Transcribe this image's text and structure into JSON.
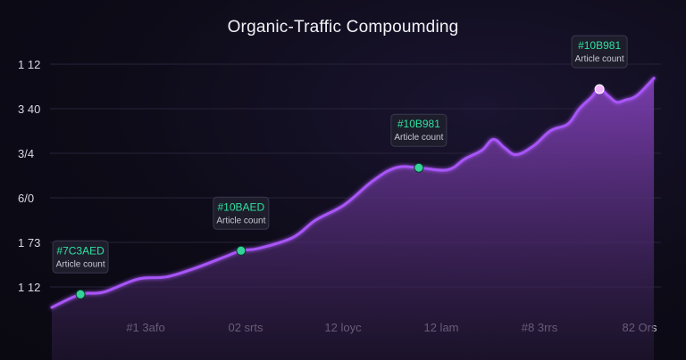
{
  "chart_data": {
    "type": "area",
    "title": "Organic-Traffic Compoumding",
    "ytick_labels": [
      "1 12",
      "3 40",
      "3/4",
      "6/0",
      "1 73",
      "1 12"
    ],
    "xtick_labels": [
      "#1 3afo",
      "02 srts",
      "12 loyc",
      "12 lam",
      "#8 3rrs",
      "82 Ors"
    ],
    "grid": true,
    "series": [
      {
        "color": "#a855f7",
        "points": [
          [
            0.0,
            0.0
          ],
          [
            0.05,
            0.06
          ],
          [
            0.09,
            0.07
          ],
          [
            0.15,
            0.13
          ],
          [
            0.2,
            0.14
          ],
          [
            0.25,
            0.18
          ],
          [
            0.3,
            0.23
          ],
          [
            0.33,
            0.26
          ],
          [
            0.36,
            0.27
          ],
          [
            0.42,
            0.32
          ],
          [
            0.46,
            0.4
          ],
          [
            0.51,
            0.47
          ],
          [
            0.56,
            0.58
          ],
          [
            0.6,
            0.64
          ],
          [
            0.64,
            0.64
          ],
          [
            0.69,
            0.63
          ],
          [
            0.72,
            0.68
          ],
          [
            0.75,
            0.72
          ],
          [
            0.77,
            0.77
          ],
          [
            0.79,
            0.73
          ],
          [
            0.81,
            0.7
          ],
          [
            0.84,
            0.74
          ],
          [
            0.87,
            0.81
          ],
          [
            0.9,
            0.84
          ],
          [
            0.92,
            0.91
          ],
          [
            0.94,
            0.96
          ],
          [
            0.955,
            1.0
          ],
          [
            0.97,
            0.97
          ],
          [
            0.985,
            0.94
          ],
          [
            1.0,
            0.95
          ],
          [
            1.02,
            0.97
          ],
          [
            1.05,
            1.05
          ]
        ]
      }
    ],
    "callouts": [
      {
        "value": "#7C3AED",
        "label": "Article count",
        "at": 0.05
      },
      {
        "value": "#10BAED",
        "label": "Article count",
        "at": 0.33
      },
      {
        "value": "#10B981",
        "label": "Article count",
        "at": 0.64
      },
      {
        "value": "#10B981",
        "label": "Article count",
        "at": 0.955
      }
    ],
    "colors": {
      "line": "#a855f7",
      "area_top": "#7e3fb3",
      "area_bottom": "#241836",
      "marker_green": "#34d399",
      "marker_pink": "#f5b8ff",
      "callout_value": "#2fe0a0"
    }
  }
}
